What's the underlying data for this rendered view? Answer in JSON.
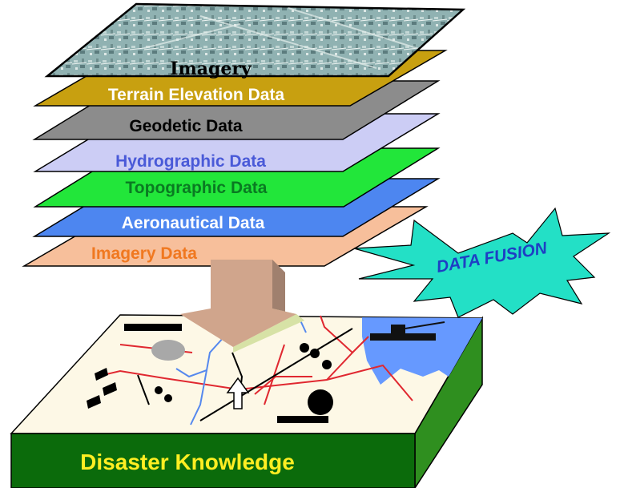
{
  "diagram": {
    "layers": [
      {
        "label": "Imagery",
        "fill": "#8fb0b0",
        "text_color": "#000000"
      },
      {
        "label": "Terrain Elevation Data",
        "fill": "#c8a010",
        "text_color": "#ffffff"
      },
      {
        "label": "Geodetic Data",
        "fill": "#8c8c8c",
        "text_color": "#000000"
      },
      {
        "label": "Hydrographic Data",
        "fill": "#cccdf5",
        "text_color": "#4a5ad8"
      },
      {
        "label": "Topographic Data",
        "fill": "#22e63a",
        "text_color": "#0a7a22"
      },
      {
        "label": "Aeronautical Data",
        "fill": "#4d86f0",
        "text_color": "#ffffff"
      },
      {
        "label": "Imagery Data",
        "fill": "#f7bf9b",
        "text_color": "#f07820"
      }
    ],
    "fusion_label": "DATA FUSION",
    "fusion_colors": {
      "fill": "#23e0c6",
      "text": "#1e3fc4"
    },
    "arrow_color": "#d0a58c",
    "base_label": "Disaster Knowledge",
    "base_colors": {
      "front": "#0b6b0b",
      "right": "#2f8f1f",
      "top": "#fdf8e6",
      "label": "#ffee22",
      "water": "#6699ff",
      "roads": "#e02830",
      "rivers": "#5588ee"
    }
  }
}
